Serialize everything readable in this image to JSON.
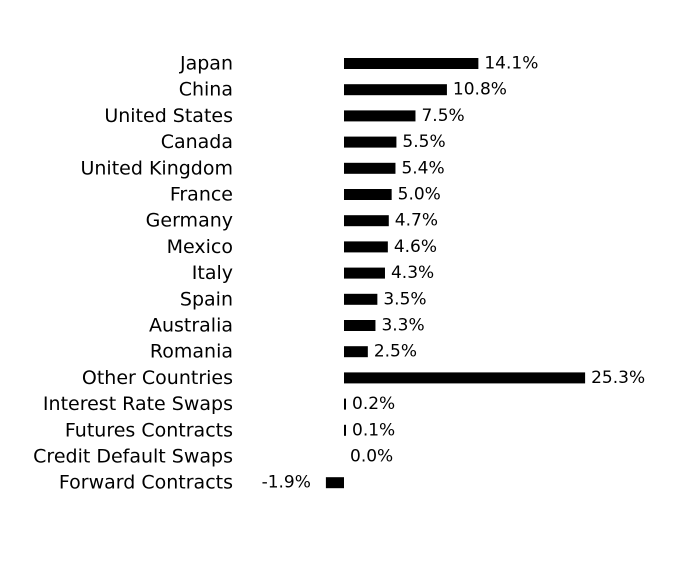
{
  "chart_data": {
    "type": "bar",
    "orientation": "horizontal",
    "categories": [
      "Japan",
      "China",
      "United States",
      "Canada",
      "United Kingdom",
      "France",
      "Germany",
      "Mexico",
      "Italy",
      "Spain",
      "Australia",
      "Romania",
      "Other Countries",
      "Interest Rate Swaps",
      "Futures Contracts",
      "Credit Default Swaps",
      "Forward Contracts"
    ],
    "values": [
      14.1,
      10.8,
      7.5,
      5.5,
      5.4,
      5.0,
      4.7,
      4.6,
      4.3,
      3.5,
      3.3,
      2.5,
      25.3,
      0.2,
      0.1,
      0.0,
      -1.9
    ],
    "value_labels": [
      "14.1%",
      "10.8%",
      "7.5%",
      "5.5%",
      "5.4%",
      "5.0%",
      "4.7%",
      "4.6%",
      "4.3%",
      "3.5%",
      "3.3%",
      "2.5%",
      "25.3%",
      "0.2%",
      "0.1%",
      "0.0%",
      "-1.9%"
    ],
    "bar_color": "#000000",
    "grid": false,
    "legend": "none"
  }
}
